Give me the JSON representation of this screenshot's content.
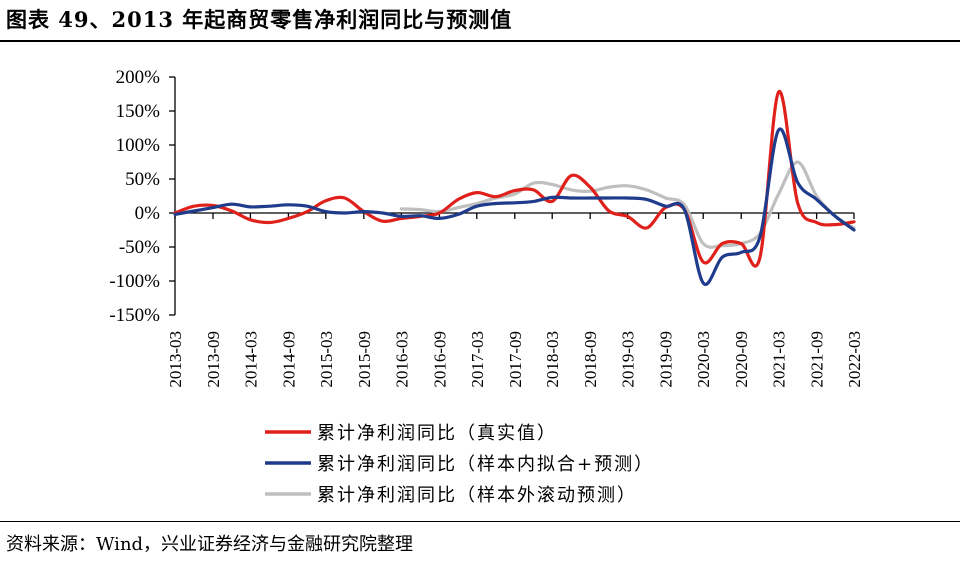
{
  "figure": {
    "title": "图表 49、2013 年起商贸零售净利润同比与预测值",
    "source": "资料来源：Wind，兴业证券经济与金融研究院整理"
  },
  "chart_data": {
    "type": "line",
    "title": "",
    "xlabel": "",
    "ylabel": "",
    "ylim": [
      -150,
      200
    ],
    "y_ticks": [
      -150,
      -100,
      -50,
      0,
      50,
      100,
      150,
      200
    ],
    "y_tick_labels": [
      "-150%",
      "-100%",
      "-50%",
      "0%",
      "50%",
      "100%",
      "150%",
      "200%"
    ],
    "x_ticks": [
      "2013-03",
      "2013-09",
      "2014-03",
      "2014-09",
      "2015-03",
      "2015-09",
      "2016-03",
      "2016-09",
      "2017-03",
      "2017-09",
      "2018-03",
      "2018-09",
      "2019-03",
      "2019-09",
      "2020-03",
      "2020-09",
      "2021-03",
      "2021-09",
      "2022-03"
    ],
    "grid": false,
    "legend_position": "bottom",
    "series": [
      {
        "name": "累计净利润同比（真实值）",
        "color": "#e0201b",
        "points": [
          [
            "2013-03",
            0
          ],
          [
            "2013-06",
            10
          ],
          [
            "2013-09",
            11
          ],
          [
            "2013-12",
            3
          ],
          [
            "2014-03",
            -10
          ],
          [
            "2014-06",
            -14
          ],
          [
            "2014-09",
            -8
          ],
          [
            "2014-12",
            2
          ],
          [
            "2015-03",
            18
          ],
          [
            "2015-06",
            22
          ],
          [
            "2015-09",
            2
          ],
          [
            "2015-12",
            -12
          ],
          [
            "2016-03",
            -8
          ],
          [
            "2016-06",
            -5
          ],
          [
            "2016-09",
            0
          ],
          [
            "2016-12",
            20
          ],
          [
            "2017-03",
            30
          ],
          [
            "2017-06",
            24
          ],
          [
            "2017-09",
            33
          ],
          [
            "2017-12",
            34
          ],
          [
            "2018-03",
            17
          ],
          [
            "2018-06",
            55
          ],
          [
            "2018-09",
            38
          ],
          [
            "2018-12",
            3
          ],
          [
            "2019-03",
            -5
          ],
          [
            "2019-06",
            -22
          ],
          [
            "2019-09",
            8
          ],
          [
            "2019-12",
            5
          ],
          [
            "2020-03",
            -72
          ],
          [
            "2020-06",
            -45
          ],
          [
            "2020-09",
            -45
          ],
          [
            "2020-12",
            -65
          ],
          [
            "2021-03",
            178
          ],
          [
            "2021-06",
            15
          ],
          [
            "2021-09",
            -14
          ],
          [
            "2021-12",
            -17
          ],
          [
            "2022-03",
            -13
          ]
        ]
      },
      {
        "name": "累计净利润同比（样本内拟合+预测）",
        "color": "#1f3b8c",
        "points": [
          [
            "2013-03",
            -2
          ],
          [
            "2013-06",
            3
          ],
          [
            "2013-09",
            8
          ],
          [
            "2013-12",
            13
          ],
          [
            "2014-03",
            9
          ],
          [
            "2014-06",
            10
          ],
          [
            "2014-09",
            12
          ],
          [
            "2014-12",
            10
          ],
          [
            "2015-03",
            2
          ],
          [
            "2015-06",
            0
          ],
          [
            "2015-09",
            2
          ],
          [
            "2015-12",
            0
          ],
          [
            "2016-03",
            -5
          ],
          [
            "2016-06",
            -4
          ],
          [
            "2016-09",
            -8
          ],
          [
            "2016-12",
            -2
          ],
          [
            "2017-03",
            10
          ],
          [
            "2017-06",
            14
          ],
          [
            "2017-09",
            15
          ],
          [
            "2017-12",
            17
          ],
          [
            "2018-03",
            23
          ],
          [
            "2018-06",
            22
          ],
          [
            "2018-09",
            22
          ],
          [
            "2018-12",
            22
          ],
          [
            "2019-03",
            22
          ],
          [
            "2019-06",
            20
          ],
          [
            "2019-09",
            10
          ],
          [
            "2019-12",
            5
          ],
          [
            "2020-03",
            -103
          ],
          [
            "2020-06",
            -65
          ],
          [
            "2020-09",
            -58
          ],
          [
            "2020-12",
            -35
          ],
          [
            "2021-03",
            122
          ],
          [
            "2021-06",
            45
          ],
          [
            "2021-09",
            20
          ],
          [
            "2021-12",
            -5
          ],
          [
            "2022-03",
            -25
          ]
        ]
      },
      {
        "name": "累计净利润同比（样本外滚动预测）",
        "color": "#bfbfbf",
        "points": [
          [
            "2016-03",
            6
          ],
          [
            "2016-06",
            5
          ],
          [
            "2016-09",
            2
          ],
          [
            "2016-12",
            8
          ],
          [
            "2017-03",
            14
          ],
          [
            "2017-06",
            22
          ],
          [
            "2017-09",
            28
          ],
          [
            "2017-12",
            44
          ],
          [
            "2018-03",
            42
          ],
          [
            "2018-06",
            34
          ],
          [
            "2018-09",
            32
          ],
          [
            "2018-12",
            38
          ],
          [
            "2019-03",
            40
          ],
          [
            "2019-06",
            34
          ],
          [
            "2019-09",
            22
          ],
          [
            "2019-12",
            12
          ],
          [
            "2020-03",
            -45
          ],
          [
            "2020-06",
            -48
          ],
          [
            "2020-09",
            -45
          ],
          [
            "2020-12",
            -30
          ],
          [
            "2021-03",
            28
          ],
          [
            "2021-06",
            75
          ],
          [
            "2021-09",
            25
          ],
          [
            "2021-12",
            -5
          ],
          [
            "2022-03",
            -22
          ]
        ]
      }
    ]
  }
}
